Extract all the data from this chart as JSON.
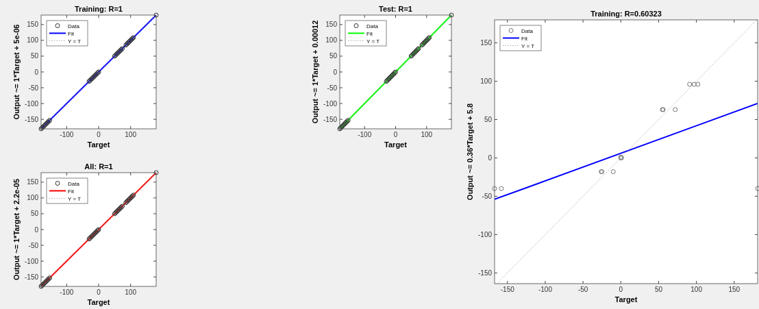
{
  "chart_data": [
    {
      "type": "scatter",
      "title": "Training: R=1",
      "xlabel": "Target",
      "ylabel": "Output ~= 1*Target + 5e-06",
      "xlim": [
        -180,
        180
      ],
      "ylim": [
        -180,
        180
      ],
      "xticks": [
        -100,
        0,
        100
      ],
      "yticks": [
        -150,
        -100,
        -50,
        0,
        50,
        100,
        150
      ],
      "legend": "top left",
      "grid": false,
      "series": [
        {
          "name": "Data",
          "type": "scatter",
          "marker": "circle",
          "color": "#333333",
          "x": [
            -180,
            -177,
            -174,
            -171,
            -168,
            -165,
            -162,
            -159,
            -156,
            -153,
            -30,
            -27,
            -24,
            -21,
            -18,
            -15,
            -12,
            -9,
            -6,
            -3,
            0,
            50,
            53,
            56,
            59,
            62,
            65,
            68,
            71,
            74,
            85,
            88,
            91,
            94,
            97,
            100,
            103,
            106,
            109,
            180
          ],
          "values": [
            -180,
            -177,
            -174,
            -171,
            -168,
            -165,
            -162,
            -159,
            -156,
            -153,
            -30,
            -27,
            -24,
            -21,
            -18,
            -15,
            -12,
            -9,
            -6,
            -3,
            0,
            50,
            53,
            56,
            59,
            62,
            65,
            68,
            71,
            74,
            85,
            88,
            91,
            94,
            97,
            100,
            103,
            106,
            109,
            180
          ]
        },
        {
          "name": "Fit",
          "type": "line",
          "line_style": "solid",
          "color": "#0000ff",
          "x": [
            -180,
            180
          ],
          "values": [
            -180,
            180
          ]
        },
        {
          "name": "Y = T",
          "type": "line",
          "line_style": "dotted",
          "color": "#999999",
          "x": [
            -180,
            180
          ],
          "values": [
            -180,
            180
          ]
        }
      ]
    },
    {
      "type": "scatter",
      "title": "Test: R=1",
      "xlabel": "Target",
      "ylabel": "Output ~= 1*Target + 0.00012",
      "xlim": [
        -180,
        180
      ],
      "ylim": [
        -180,
        180
      ],
      "xticks": [
        -100,
        0,
        100
      ],
      "yticks": [
        -150,
        -100,
        -50,
        0,
        50,
        100,
        150
      ],
      "legend": "top left",
      "grid": false,
      "series": [
        {
          "name": "Data",
          "type": "scatter",
          "marker": "circle",
          "color": "#333333",
          "x": [
            -180,
            -177,
            -174,
            -171,
            -168,
            -165,
            -162,
            -159,
            -156,
            -153,
            -30,
            -27,
            -24,
            -21,
            -18,
            -15,
            -12,
            -9,
            -6,
            -3,
            0,
            50,
            53,
            56,
            59,
            62,
            65,
            68,
            71,
            74,
            85,
            88,
            91,
            94,
            97,
            100,
            103,
            106,
            109,
            180
          ],
          "values": [
            -180,
            -177,
            -174,
            -171,
            -168,
            -165,
            -162,
            -159,
            -156,
            -153,
            -30,
            -27,
            -24,
            -21,
            -18,
            -15,
            -12,
            -9,
            -6,
            -3,
            0,
            50,
            53,
            56,
            59,
            62,
            65,
            68,
            71,
            74,
            85,
            88,
            91,
            94,
            97,
            100,
            103,
            106,
            109,
            180
          ]
        },
        {
          "name": "Fit",
          "type": "line",
          "line_style": "solid",
          "color": "#00ff00",
          "x": [
            -180,
            180
          ],
          "values": [
            -180,
            180
          ]
        },
        {
          "name": "Y = T",
          "type": "line",
          "line_style": "dotted",
          "color": "#999999",
          "x": [
            -180,
            180
          ],
          "values": [
            -180,
            180
          ]
        }
      ]
    },
    {
      "type": "scatter",
      "title": "Training: R=0.60323",
      "xlabel": "Target",
      "ylabel": "Output ~= 0.36*Target + 5.8",
      "xlim": [
        -167,
        181
      ],
      "ylim": [
        -164,
        180
      ],
      "xticks": [
        -150,
        -100,
        -50,
        0,
        50,
        100,
        150
      ],
      "yticks": [
        -150,
        -100,
        -50,
        0,
        50,
        100,
        150
      ],
      "legend": "top left",
      "grid": false,
      "series": [
        {
          "name": "Data",
          "type": "scatter",
          "marker": "circle",
          "color": "#777777",
          "x": [
            -167,
            -158,
            -26,
            -25,
            -10,
            0,
            0,
            1,
            55,
            56,
            72,
            91,
            97,
            102,
            181
          ],
          "values": [
            -40,
            -40,
            -18,
            -18,
            -18,
            0,
            1,
            0,
            63,
            63,
            63,
            96,
            96,
            96,
            -40
          ]
        },
        {
          "name": "Fit",
          "type": "line",
          "line_style": "solid",
          "color": "#0000ff",
          "x": [
            -167,
            181
          ],
          "values": [
            -54,
            71
          ]
        },
        {
          "name": "Y = T",
          "type": "line",
          "line_style": "dotted",
          "color": "#999999",
          "x": [
            -164,
            180
          ],
          "values": [
            -164,
            180
          ]
        }
      ]
    },
    {
      "type": "scatter",
      "title": "All: R=1",
      "xlabel": "Target",
      "ylabel": "Output ~= 1*Target + 2.2e-05",
      "xlim": [
        -180,
        180
      ],
      "ylim": [
        -180,
        180
      ],
      "xticks": [
        -100,
        0,
        100
      ],
      "yticks": [
        -150,
        -100,
        -50,
        0,
        50,
        100,
        150
      ],
      "legend": "top left",
      "grid": false,
      "series": [
        {
          "name": "Data",
          "type": "scatter",
          "marker": "circle",
          "color": "#333333",
          "x": [
            -180,
            -177,
            -174,
            -171,
            -168,
            -165,
            -162,
            -159,
            -156,
            -153,
            -30,
            -27,
            -24,
            -21,
            -18,
            -15,
            -12,
            -9,
            -6,
            -3,
            0,
            50,
            53,
            56,
            59,
            62,
            65,
            68,
            71,
            74,
            85,
            88,
            91,
            94,
            97,
            100,
            103,
            106,
            109,
            180
          ],
          "values": [
            -180,
            -177,
            -174,
            -171,
            -168,
            -165,
            -162,
            -159,
            -156,
            -153,
            -30,
            -27,
            -24,
            -21,
            -18,
            -15,
            -12,
            -9,
            -6,
            -3,
            0,
            50,
            53,
            56,
            59,
            62,
            65,
            68,
            71,
            74,
            85,
            88,
            91,
            94,
            97,
            100,
            103,
            106,
            109,
            180
          ]
        },
        {
          "name": "Fit",
          "type": "line",
          "line_style": "solid",
          "color": "#ff0000",
          "x": [
            -180,
            180
          ],
          "values": [
            -180,
            180
          ]
        },
        {
          "name": "Y = T",
          "type": "line",
          "line_style": "dotted",
          "color": "#999999",
          "x": [
            -180,
            180
          ],
          "values": [
            -180,
            180
          ]
        }
      ]
    }
  ]
}
